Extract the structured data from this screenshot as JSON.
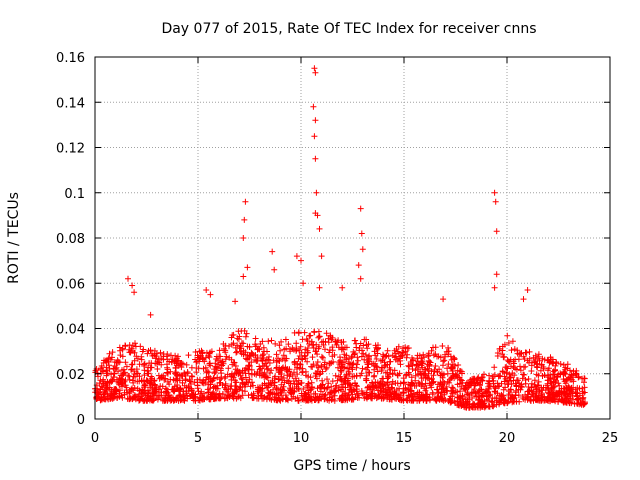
{
  "chart_data": {
    "type": "scatter",
    "title": "Day 077 of 2015, Rate Of TEC Index for receiver cnns",
    "xlabel": "GPS time / hours",
    "ylabel": "ROTI / TECUs",
    "xlim": [
      0,
      25
    ],
    "ylim": [
      0,
      0.16
    ],
    "x_ticks": [
      0,
      5,
      10,
      15,
      20,
      25
    ],
    "x_tick_labels": [
      "0",
      "5",
      "10",
      "15",
      "20",
      "25"
    ],
    "y_ticks": [
      0,
      0.02,
      0.04,
      0.06,
      0.08,
      0.1,
      0.12,
      0.14,
      0.16
    ],
    "y_tick_labels": [
      "0",
      "0.02",
      "0.04",
      "0.06",
      "0.08",
      "0.1",
      "0.12",
      "0.14",
      "0.16"
    ],
    "grid": true,
    "marker": "+",
    "series": [
      {
        "name": "ROTI",
        "color": "#ff0000",
        "peaks": [
          {
            "x": 1.6,
            "y": 0.062
          },
          {
            "x": 1.8,
            "y": 0.059
          },
          {
            "x": 1.9,
            "y": 0.056
          },
          {
            "x": 2.7,
            "y": 0.046
          },
          {
            "x": 5.4,
            "y": 0.057
          },
          {
            "x": 5.6,
            "y": 0.055
          },
          {
            "x": 6.8,
            "y": 0.052
          },
          {
            "x": 7.3,
            "y": 0.096
          },
          {
            "x": 7.25,
            "y": 0.088
          },
          {
            "x": 7.2,
            "y": 0.08
          },
          {
            "x": 7.4,
            "y": 0.067
          },
          {
            "x": 7.2,
            "y": 0.063
          },
          {
            "x": 8.6,
            "y": 0.074
          },
          {
            "x": 8.7,
            "y": 0.066
          },
          {
            "x": 9.8,
            "y": 0.072
          },
          {
            "x": 10.0,
            "y": 0.07
          },
          {
            "x": 10.1,
            "y": 0.06
          },
          {
            "x": 10.65,
            "y": 0.155
          },
          {
            "x": 10.7,
            "y": 0.153
          },
          {
            "x": 10.6,
            "y": 0.138
          },
          {
            "x": 10.7,
            "y": 0.132
          },
          {
            "x": 10.65,
            "y": 0.125
          },
          {
            "x": 10.7,
            "y": 0.115
          },
          {
            "x": 10.75,
            "y": 0.1
          },
          {
            "x": 10.7,
            "y": 0.091
          },
          {
            "x": 10.8,
            "y": 0.09
          },
          {
            "x": 10.9,
            "y": 0.084
          },
          {
            "x": 11.0,
            "y": 0.072
          },
          {
            "x": 10.9,
            "y": 0.058
          },
          {
            "x": 12.0,
            "y": 0.058
          },
          {
            "x": 12.9,
            "y": 0.093
          },
          {
            "x": 12.95,
            "y": 0.082
          },
          {
            "x": 13.0,
            "y": 0.075
          },
          {
            "x": 12.8,
            "y": 0.068
          },
          {
            "x": 12.9,
            "y": 0.062
          },
          {
            "x": 16.9,
            "y": 0.053
          },
          {
            "x": 19.4,
            "y": 0.1
          },
          {
            "x": 19.45,
            "y": 0.096
          },
          {
            "x": 19.5,
            "y": 0.083
          },
          {
            "x": 19.5,
            "y": 0.064
          },
          {
            "x": 19.4,
            "y": 0.058
          },
          {
            "x": 21.0,
            "y": 0.057
          },
          {
            "x": 20.8,
            "y": 0.053
          }
        ],
        "baseline_profile": [
          {
            "x": 0.0,
            "low": 0.008,
            "high": 0.022
          },
          {
            "x": 1.0,
            "low": 0.009,
            "high": 0.032
          },
          {
            "x": 2.0,
            "low": 0.008,
            "high": 0.034
          },
          {
            "x": 3.0,
            "low": 0.008,
            "high": 0.03
          },
          {
            "x": 4.0,
            "low": 0.008,
            "high": 0.028
          },
          {
            "x": 5.0,
            "low": 0.008,
            "high": 0.03
          },
          {
            "x": 6.0,
            "low": 0.009,
            "high": 0.032
          },
          {
            "x": 7.0,
            "low": 0.009,
            "high": 0.04
          },
          {
            "x": 8.0,
            "low": 0.009,
            "high": 0.036
          },
          {
            "x": 9.0,
            "low": 0.008,
            "high": 0.034
          },
          {
            "x": 10.0,
            "low": 0.008,
            "high": 0.04
          },
          {
            "x": 11.0,
            "low": 0.008,
            "high": 0.04
          },
          {
            "x": 12.0,
            "low": 0.008,
            "high": 0.034
          },
          {
            "x": 13.0,
            "low": 0.009,
            "high": 0.036
          },
          {
            "x": 14.0,
            "low": 0.009,
            "high": 0.032
          },
          {
            "x": 15.0,
            "low": 0.008,
            "high": 0.032
          },
          {
            "x": 16.0,
            "low": 0.008,
            "high": 0.03
          },
          {
            "x": 17.0,
            "low": 0.008,
            "high": 0.034
          },
          {
            "x": 18.0,
            "low": 0.005,
            "high": 0.018
          },
          {
            "x": 19.0,
            "low": 0.005,
            "high": 0.02
          },
          {
            "x": 20.0,
            "low": 0.007,
            "high": 0.038
          },
          {
            "x": 21.0,
            "low": 0.008,
            "high": 0.03
          },
          {
            "x": 22.0,
            "low": 0.008,
            "high": 0.028
          },
          {
            "x": 23.0,
            "low": 0.007,
            "high": 0.024
          },
          {
            "x": 23.8,
            "low": 0.006,
            "high": 0.018
          }
        ]
      }
    ]
  }
}
